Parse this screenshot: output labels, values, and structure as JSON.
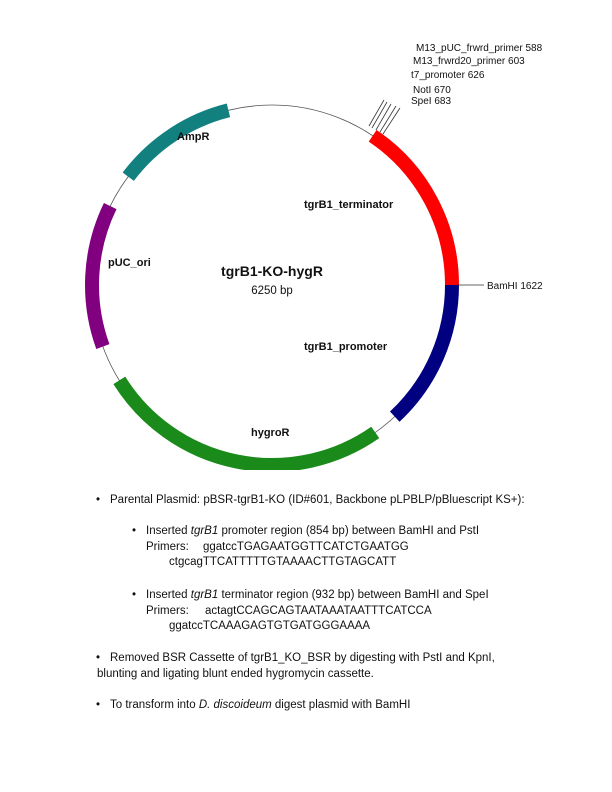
{
  "plasmid": {
    "name": "tgrB1-KO-hygR",
    "size_label": "6250 bp",
    "features": [
      {
        "id": "ampr",
        "label": "AmpR",
        "color": "#138080"
      },
      {
        "id": "tgrb1-terminator",
        "label": "tgrB1_terminator",
        "color": "#ff0000"
      },
      {
        "id": "tgrb1-promoter",
        "label": "tgrB1_promoter",
        "color": "#000080"
      },
      {
        "id": "hygror",
        "label": "hygroR",
        "color": "#1a8a1a"
      },
      {
        "id": "puc-ori",
        "label": "pUC_ori",
        "color": "#800080"
      }
    ],
    "sites": [
      {
        "id": "m13-puc-frwrd-primer",
        "label": "M13_pUC_frwrd_primer 588"
      },
      {
        "id": "m13-frwrd20-primer",
        "label": "M13_frwrd20_primer 603"
      },
      {
        "id": "t7-promoter",
        "label": "t7_promoter 626"
      },
      {
        "id": "noti",
        "label": "NotI 670"
      },
      {
        "id": "spei",
        "label": "SpeI 683"
      },
      {
        "id": "bamhi",
        "label": "BamHI 1622"
      }
    ]
  },
  "notes": {
    "parental": "Parental Plasmid: pBSR-tgrB1-KO (ID#601, Backbone pLPBLP/pBluescript KS+):",
    "promoter_insert": {
      "prefix": "Inserted ",
      "gene": "tgrB1",
      "suffix": " promoter region (854 bp) between BamHI and PstI",
      "primers_label": "Primers:",
      "primer1": "ggatccTGAGAATGGTTCATCTGAATGG",
      "primer2": "ctgcagTTCATTTTTGTAAAACTTGTAGCATT"
    },
    "terminator_insert": {
      "prefix": "Inserted ",
      "gene": "tgrB1",
      "suffix": " terminator region (932 bp) between BamHI and SpeI",
      "primers_label": "Primers:",
      "primer1": "actagtCCAGCAGTAATAAATAATTTCATCCA",
      "primer2": "ggatccTCAAAGAGTGTGATGGGAAAA"
    },
    "removed_line1": "Removed BSR Cassette of tgrB1_KO_BSR by digesting with PstI and KpnI,",
    "removed_line2": "blunting and ligating blunt ended hygromycin cassette.",
    "transform_prefix": "To transform into ",
    "transform_organism": "D. discoideum",
    "transform_suffix": " digest plasmid with BamHI"
  }
}
